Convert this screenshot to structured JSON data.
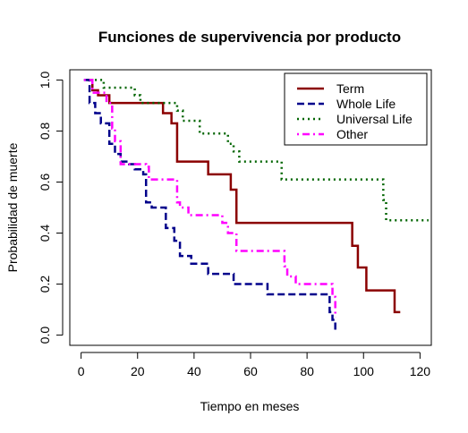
{
  "chart_data": {
    "type": "line",
    "title": "Funciones de supervivencia por producto",
    "xlabel": "Tiempo en meses",
    "ylabel": "Probabilidad de muerte",
    "xlim": [
      -4,
      124
    ],
    "ylim": [
      -0.04,
      1.04
    ],
    "xticks": [
      0,
      20,
      40,
      60,
      80,
      100,
      120
    ],
    "xtick_labels": [
      "0",
      "20",
      "40",
      "60",
      "80",
      "100",
      "120"
    ],
    "yticks": [
      0.0,
      0.2,
      0.4,
      0.6,
      0.8,
      1.0
    ],
    "ytick_labels": [
      "0.0",
      "0.2",
      "0.4",
      "0.6",
      "0.8",
      "1.0"
    ],
    "legend_position": "top-right",
    "series": [
      {
        "name": "Term",
        "color": "#8b0000",
        "dash": "solid",
        "x": [
          2,
          4,
          6,
          10,
          29,
          32,
          34,
          45,
          53,
          55,
          96,
          98,
          101,
          111,
          113
        ],
        "y": [
          1.0,
          0.96,
          0.94,
          0.91,
          0.87,
          0.83,
          0.68,
          0.63,
          0.57,
          0.44,
          0.35,
          0.265,
          0.175,
          0.09,
          0.09
        ]
      },
      {
        "name": "Whole Life",
        "color": "#00008b",
        "dash": "dashed",
        "x": [
          1,
          3,
          5,
          7,
          10,
          12,
          14,
          17,
          19,
          22,
          23,
          25,
          30,
          33,
          35,
          39,
          45,
          54,
          66,
          78,
          88,
          89,
          90
        ],
        "y": [
          1.0,
          0.91,
          0.87,
          0.83,
          0.75,
          0.71,
          0.68,
          0.67,
          0.65,
          0.63,
          0.52,
          0.5,
          0.42,
          0.37,
          0.31,
          0.28,
          0.24,
          0.2,
          0.16,
          0.16,
          0.09,
          0.06,
          0.02
        ]
      },
      {
        "name": "Universal Life",
        "color": "#006400",
        "dash": "dotted",
        "x": [
          3,
          8,
          19,
          21,
          34,
          36,
          42,
          52,
          54,
          56,
          71,
          107,
          108,
          123
        ],
        "y": [
          1.0,
          0.97,
          0.94,
          0.91,
          0.88,
          0.84,
          0.79,
          0.75,
          0.72,
          0.68,
          0.61,
          0.53,
          0.45,
          0.45
        ]
      },
      {
        "name": "Other",
        "color": "#ff00ff",
        "dash": "dashdot",
        "x": [
          1,
          4,
          9,
          11,
          12,
          14,
          23,
          24,
          34,
          35,
          38,
          50,
          52,
          55,
          72,
          73,
          76,
          89,
          90
        ],
        "y": [
          1.0,
          0.95,
          0.91,
          0.81,
          0.76,
          0.67,
          0.66,
          0.61,
          0.52,
          0.5,
          0.47,
          0.44,
          0.4,
          0.33,
          0.27,
          0.23,
          0.2,
          0.15,
          0.07
        ]
      }
    ]
  }
}
